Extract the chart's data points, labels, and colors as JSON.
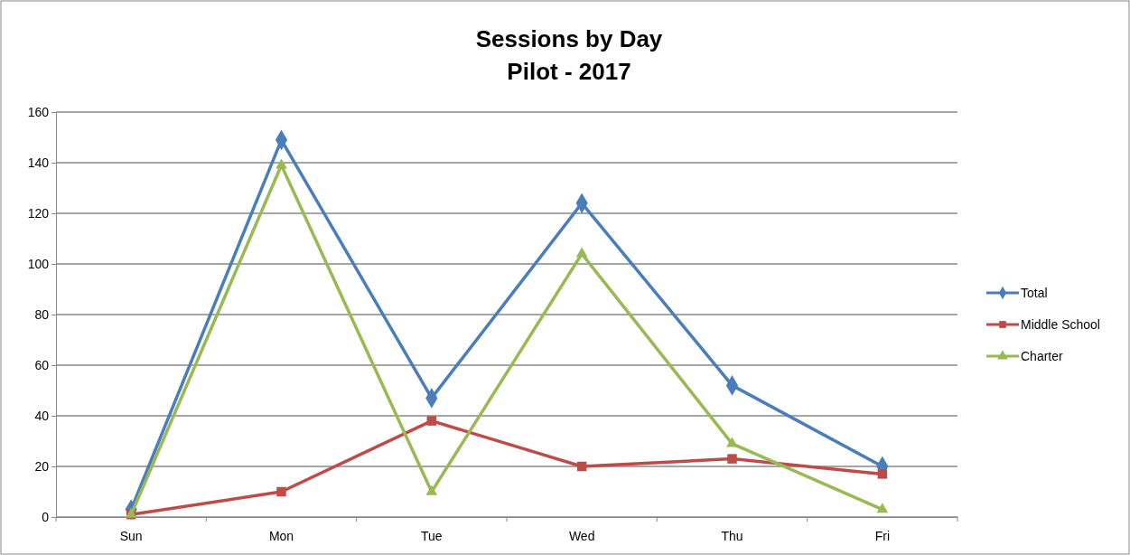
{
  "chart_data": {
    "type": "line",
    "title": "Sessions by Day\nPilot - 2017",
    "categories": [
      "Sun",
      "Mon",
      "Tue",
      "Wed",
      "Thu",
      "Fri"
    ],
    "series": [
      {
        "name": "Total",
        "color": "#4a7ebb",
        "marker": "diamond",
        "values": [
          3,
          149,
          47,
          124,
          52,
          20
        ]
      },
      {
        "name": "Middle School",
        "color": "#be4b48",
        "marker": "square",
        "values": [
          1,
          10,
          38,
          20,
          23,
          17
        ]
      },
      {
        "name": "Charter",
        "color": "#98b954",
        "marker": "triangle",
        "values": [
          1,
          139,
          10,
          104,
          29,
          3
        ]
      }
    ],
    "ylim": [
      0,
      160
    ],
    "yticks": [
      0,
      20,
      40,
      60,
      80,
      100,
      120,
      140,
      160
    ],
    "grid": "y",
    "legend": "right",
    "line_style": "solid"
  }
}
